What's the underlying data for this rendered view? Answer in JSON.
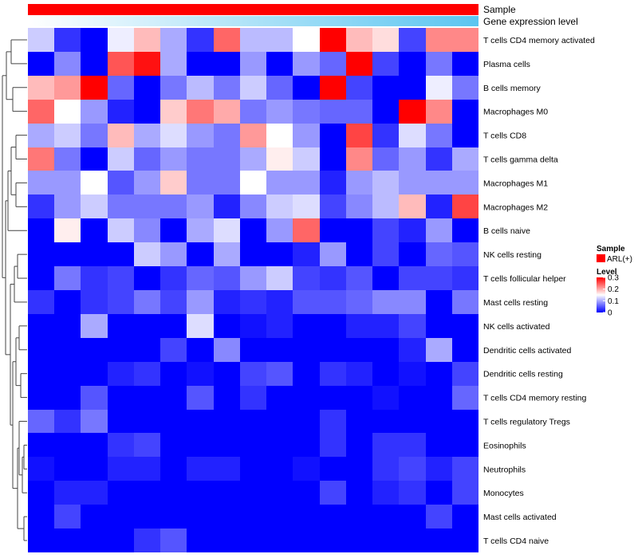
{
  "chart_data": {
    "type": "heatmap",
    "annotations": [
      {
        "label": "Sample",
        "values": [
          "ARL(+)"
        ],
        "color": "#ff0000"
      },
      {
        "label": "Gene expression level",
        "gradient": [
          "#ffffff",
          "#5bc5f0"
        ]
      }
    ],
    "rows": [
      "T cells CD4 memory activated",
      "Plasma cells",
      "B cells memory",
      "Macrophages M0",
      "T cells CD8",
      "T cells gamma delta",
      "Macrophages M1",
      "Macrophages M2",
      "B cells naive",
      "NK cells resting",
      "T cells follicular helper",
      "Mast cells resting",
      "NK cells activated",
      "Dendritic cells activated",
      "Dendritic cells resting",
      "T cells CD4 memory resting",
      "T cells regulatory  Tregs",
      "Eosinophils",
      "Neutrophils",
      "Monocytes",
      "Mast cells activated",
      "T cells CD4 naive"
    ],
    "n_columns": 17,
    "values": [
      [
        0.12,
        0.03,
        0.0,
        0.14,
        0.19,
        0.1,
        0.03,
        0.24,
        0.11,
        0.11,
        0.15,
        0.3,
        0.19,
        0.17,
        0.04,
        0.22,
        0.22
      ],
      [
        0.0,
        0.08,
        0.0,
        0.25,
        0.29,
        0.1,
        0.0,
        0.0,
        0.09,
        0.0,
        0.09,
        0.06,
        0.3,
        0.04,
        0.0,
        0.07,
        0.0
      ],
      [
        0.19,
        0.21,
        0.3,
        0.06,
        0.0,
        0.07,
        0.11,
        0.07,
        0.12,
        0.06,
        0.0,
        0.3,
        0.04,
        0.0,
        0.0,
        0.14,
        0.07
      ],
      [
        0.24,
        0.15,
        0.09,
        0.02,
        0.0,
        0.18,
        0.23,
        0.2,
        0.07,
        0.09,
        0.07,
        0.06,
        0.06,
        0.0,
        0.3,
        0.22,
        0.0
      ],
      [
        0.1,
        0.12,
        0.07,
        0.19,
        0.1,
        0.13,
        0.09,
        0.07,
        0.21,
        0.15,
        0.09,
        0.0,
        0.26,
        0.03,
        0.13,
        0.07,
        0.0
      ],
      [
        0.23,
        0.07,
        0.0,
        0.12,
        0.06,
        0.09,
        0.07,
        0.07,
        0.1,
        0.16,
        0.12,
        0.0,
        0.22,
        0.06,
        0.09,
        0.03,
        0.1
      ],
      [
        0.09,
        0.09,
        0.15,
        0.05,
        0.09,
        0.18,
        0.07,
        0.07,
        0.15,
        0.09,
        0.09,
        0.02,
        0.09,
        0.11,
        0.09,
        0.09,
        0.09
      ],
      [
        0.03,
        0.09,
        0.12,
        0.07,
        0.07,
        0.07,
        0.09,
        0.02,
        0.08,
        0.12,
        0.13,
        0.04,
        0.08,
        0.11,
        0.19,
        0.02,
        0.26
      ],
      [
        0.0,
        0.16,
        0.0,
        0.12,
        0.08,
        0.0,
        0.1,
        0.13,
        0.0,
        0.09,
        0.24,
        0.0,
        0.0,
        0.04,
        0.02,
        0.09,
        0.0
      ],
      [
        0.0,
        0.0,
        0.0,
        0.0,
        0.12,
        0.09,
        0.0,
        0.1,
        0.0,
        0.0,
        0.02,
        0.09,
        0.0,
        0.04,
        0.0,
        0.06,
        0.05
      ],
      [
        0.0,
        0.07,
        0.03,
        0.04,
        0.0,
        0.03,
        0.06,
        0.05,
        0.09,
        0.12,
        0.04,
        0.03,
        0.05,
        0.0,
        0.04,
        0.04,
        0.03
      ],
      [
        0.03,
        0.0,
        0.03,
        0.04,
        0.07,
        0.04,
        0.09,
        0.02,
        0.03,
        0.02,
        0.05,
        0.05,
        0.06,
        0.08,
        0.08,
        0.0,
        0.07
      ],
      [
        0.0,
        0.0,
        0.1,
        0.0,
        0.0,
        0.0,
        0.13,
        0.0,
        0.01,
        0.02,
        0.0,
        0.0,
        0.02,
        0.02,
        0.04,
        0.0,
        0.0
      ],
      [
        0.0,
        0.0,
        0.0,
        0.0,
        0.0,
        0.04,
        0.0,
        0.08,
        0.0,
        0.0,
        0.0,
        0.0,
        0.0,
        0.0,
        0.02,
        0.1,
        0.0
      ],
      [
        0.0,
        0.0,
        0.0,
        0.02,
        0.03,
        0.0,
        0.01,
        0.0,
        0.04,
        0.05,
        0.0,
        0.03,
        0.02,
        0.0,
        0.01,
        0.0,
        0.04
      ],
      [
        0.0,
        0.0,
        0.05,
        0.0,
        0.0,
        0.0,
        0.05,
        0.0,
        0.03,
        0.0,
        0.0,
        0.0,
        0.0,
        0.01,
        0.0,
        0.0,
        0.06
      ],
      [
        0.06,
        0.03,
        0.07,
        0.0,
        0.0,
        0.0,
        0.0,
        0.0,
        0.0,
        0.0,
        0.0,
        0.03,
        0.0,
        0.0,
        0.0,
        0.0,
        0.0
      ],
      [
        0.0,
        0.0,
        0.0,
        0.03,
        0.04,
        0.0,
        0.0,
        0.0,
        0.0,
        0.0,
        0.0,
        0.03,
        0.0,
        0.03,
        0.03,
        0.0,
        0.0
      ],
      [
        0.01,
        0.0,
        0.0,
        0.02,
        0.02,
        0.0,
        0.02,
        0.02,
        0.0,
        0.0,
        0.01,
        0.0,
        0.0,
        0.03,
        0.04,
        0.02,
        0.04
      ],
      [
        0.0,
        0.02,
        0.02,
        0.0,
        0.0,
        0.0,
        0.0,
        0.0,
        0.0,
        0.0,
        0.0,
        0.04,
        0.0,
        0.02,
        0.03,
        0.0,
        0.04
      ],
      [
        0.0,
        0.04,
        0.0,
        0.0,
        0.0,
        0.0,
        0.0,
        0.0,
        0.0,
        0.0,
        0.0,
        0.0,
        0.0,
        0.0,
        0.0,
        0.04,
        0.0
      ],
      [
        0.0,
        0.0,
        0.0,
        0.0,
        0.03,
        0.05,
        0.0,
        0.0,
        0.0,
        0.0,
        0.0,
        0.0,
        0.0,
        0.0,
        0.0,
        0.0,
        0.0
      ]
    ],
    "legend": {
      "sample_title": "Sample",
      "sample_entry": "ARL(+)",
      "sample_color": "#ff0000",
      "level_title": "Level",
      "ticks": [
        "0.3",
        "0.2",
        "0.1",
        "0"
      ],
      "tick_values": [
        0.3,
        0.2,
        0.1,
        0
      ],
      "range": [
        0,
        0.3
      ],
      "colors": {
        "low": "#0000ff",
        "mid": "#ffffff",
        "high": "#ff0000"
      }
    }
  }
}
